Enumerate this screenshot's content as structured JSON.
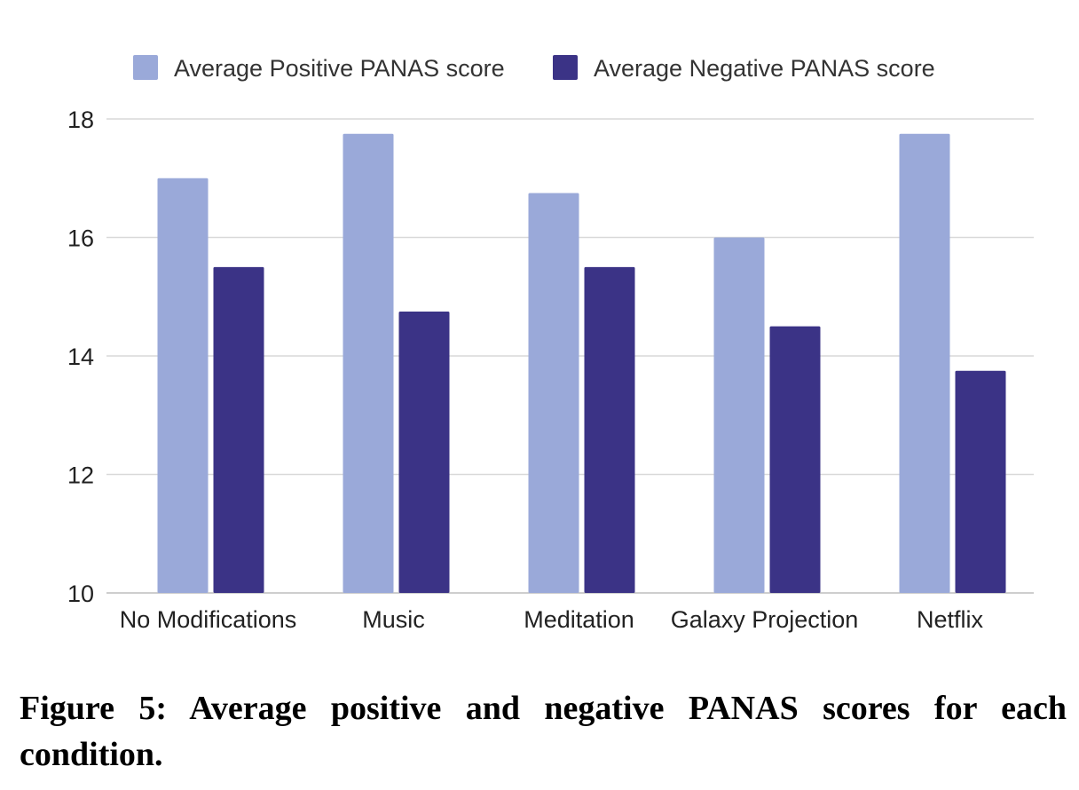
{
  "caption": "Figure 5: Average positive and negative PANAS scores for each condition.",
  "chart_data": {
    "type": "bar",
    "title": "",
    "xlabel": "",
    "ylabel": "",
    "categories": [
      "No Modifications",
      "Music",
      "Meditation",
      "Galaxy Projection",
      "Netflix"
    ],
    "series": [
      {
        "name": "Average Positive PANAS score",
        "color": "#9aa9d9",
        "values": [
          17.0,
          17.75,
          16.75,
          16.0,
          17.75
        ]
      },
      {
        "name": "Average Negative PANAS score",
        "color": "#3b3386",
        "values": [
          15.5,
          14.75,
          15.5,
          14.5,
          13.75
        ]
      }
    ],
    "ylim": [
      10,
      18
    ],
    "yticks": [
      "10",
      "12",
      "14",
      "16",
      "18"
    ],
    "grid": true,
    "legend_position": "top"
  }
}
